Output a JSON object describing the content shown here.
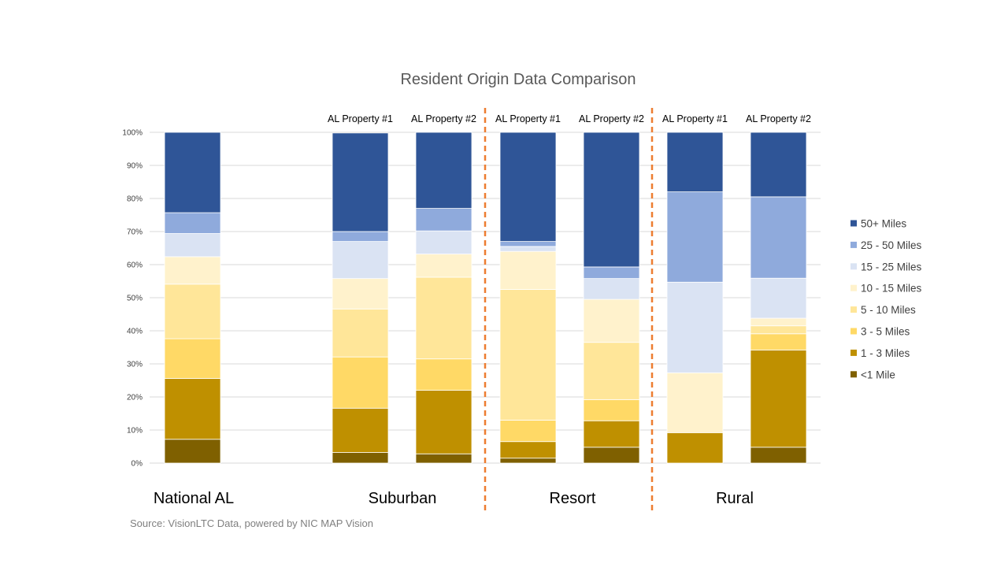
{
  "chart_data": {
    "type": "bar",
    "stacked": true,
    "percent": true,
    "title": "Resident Origin Data Comparison",
    "ylim": [
      0,
      100
    ],
    "yticks": [
      "0%",
      "10%",
      "20%",
      "30%",
      "40%",
      "50%",
      "60%",
      "70%",
      "80%",
      "90%",
      "100%"
    ],
    "legend_position": "right",
    "columns": [
      {
        "label": "",
        "group": "National AL"
      },
      {
        "label": "AL Property #1",
        "group": "Suburban"
      },
      {
        "label": "AL Property #2",
        "group": "Suburban"
      },
      {
        "label": "AL Property #1",
        "group": "Resort"
      },
      {
        "label": "AL Property #2",
        "group": "Resort"
      },
      {
        "label": "AL Property #1",
        "group": "Rural"
      },
      {
        "label": "AL Property #2",
        "group": "Rural"
      }
    ],
    "groups": [
      "National AL",
      "Suburban",
      "Resort",
      "Rural"
    ],
    "series": [
      {
        "name": "<1 Mile",
        "color": "#7f6000",
        "values": [
          7.2,
          3.2,
          2.8,
          1.5,
          4.8,
          0,
          4.8
        ]
      },
      {
        "name": "1 - 3 Miles",
        "color": "#bf9000",
        "values": [
          18.4,
          13.4,
          19.2,
          5.0,
          8.0,
          9.2,
          29.4
        ]
      },
      {
        "name": "3 - 5 Miles",
        "color": "#ffd966",
        "values": [
          12.0,
          15.5,
          9.5,
          6.5,
          6.4,
          0,
          4.9
        ]
      },
      {
        "name": "5 - 10 Miles",
        "color": "#ffe699",
        "values": [
          16.5,
          14.5,
          24.7,
          39.5,
          17.3,
          0,
          2.4
        ]
      },
      {
        "name": "10 - 15 Miles",
        "color": "#fff2cc",
        "values": [
          8.3,
          9.2,
          7.0,
          11.5,
          13.0,
          18.1,
          2.3
        ]
      },
      {
        "name": "15 - 25 Miles",
        "color": "#dae3f3",
        "values": [
          7.0,
          11.2,
          7.0,
          1.5,
          6.3,
          27.4,
          12.1
        ]
      },
      {
        "name": "25 - 50 Miles",
        "color": "#8faadc",
        "values": [
          6.3,
          3.0,
          6.8,
          1.5,
          3.5,
          27.3,
          24.6
        ]
      },
      {
        "name": "50+ Miles",
        "color": "#2f5597",
        "values": [
          24.3,
          29.8,
          23.0,
          33.0,
          40.7,
          18.0,
          19.5
        ]
      }
    ],
    "divider_color": "#ed7d31",
    "source": "Source: VisionLTC Data, powered by NIC MAP Vision"
  }
}
